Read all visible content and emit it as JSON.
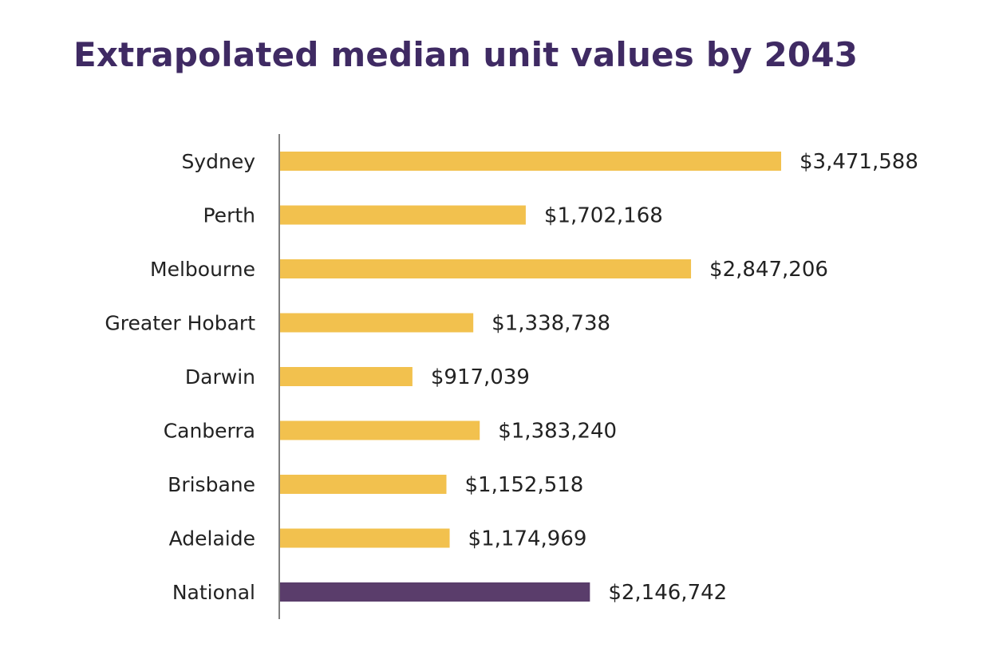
{
  "chart_data": {
    "type": "bar",
    "orientation": "horizontal",
    "title": "Extrapolated median unit values by 2043",
    "xlabel": "",
    "ylabel": "",
    "xlim": [
      0,
      3800000
    ],
    "categories": [
      "Sydney",
      "Perth",
      "Melbourne",
      "Greater Hobart",
      "Darwin",
      "Canberra",
      "Brisbane",
      "Adelaide",
      "National"
    ],
    "values": [
      3471588,
      1702168,
      2847206,
      1338738,
      917039,
      1383240,
      1152518,
      1174969,
      2146742
    ],
    "value_labels": [
      "$3,471,588",
      "$1,702,168",
      "$2,847,206",
      "$1,338,738",
      "$917,039",
      "$1,383,240",
      "$1,152,518",
      "$1,174,969",
      "$2,146,742"
    ],
    "colors": [
      "#f2c14e",
      "#f2c14e",
      "#f2c14e",
      "#f2c14e",
      "#f2c14e",
      "#f2c14e",
      "#f2c14e",
      "#f2c14e",
      "#5a3d6b"
    ],
    "grid": false,
    "legend": "none"
  },
  "colors": {
    "title": "#3f2a63",
    "axis": "#808080",
    "text": "#222222"
  }
}
